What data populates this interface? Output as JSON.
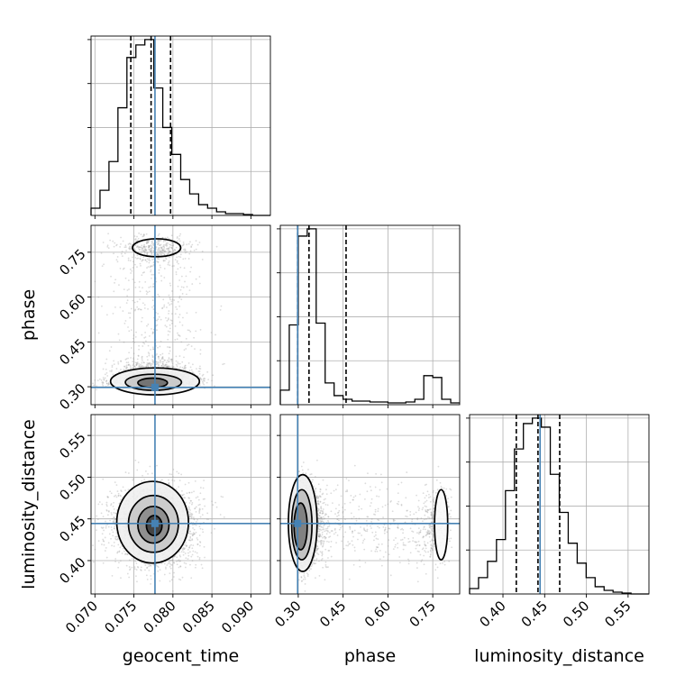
{
  "chart_data": {
    "type": "corner",
    "parameters": [
      {
        "name": "geocent_time",
        "axis_label": "geocent_time",
        "range": [
          0.0695,
          0.0925
        ],
        "ticks": [
          0.07,
          0.075,
          0.08,
          0.085,
          0.09
        ],
        "tick_labels": [
          "0.070",
          "0.075",
          "0.080",
          "0.085",
          "0.090"
        ],
        "truth": 0.0777,
        "quantiles": [
          0.0746,
          0.0772,
          0.0797
        ]
      },
      {
        "name": "phase",
        "axis_label": "phase",
        "range": [
          0.24,
          0.84
        ],
        "ticks": [
          0.3,
          0.45,
          0.6,
          0.75
        ],
        "tick_labels": [
          "0.30",
          "0.45",
          "0.60",
          "0.75"
        ],
        "truth": 0.298,
        "quantiles": [
          0.298,
          0.336,
          0.46
        ]
      },
      {
        "name": "luminosity_distance",
        "axis_label": "luminosity_distance",
        "range": [
          0.36,
          0.575
        ],
        "ticks": [
          0.4,
          0.45,
          0.5,
          0.55
        ],
        "tick_labels": [
          "0.40",
          "0.45",
          "0.50",
          "0.55"
        ],
        "truth": 0.4445,
        "quantiles": [
          0.416,
          0.442,
          0.468
        ]
      }
    ],
    "histograms": {
      "geocent_time": {
        "edges": [
          0.0695,
          0.07065,
          0.0718,
          0.07295,
          0.0741,
          0.07525,
          0.0764,
          0.07755,
          0.0787,
          0.07985,
          0.081,
          0.08215,
          0.0833,
          0.08445,
          0.0856,
          0.08675,
          0.0879,
          0.08905,
          0.0902,
          0.09135,
          0.0925
        ],
        "counts": [
          4,
          14,
          30,
          60,
          88,
          95,
          98,
          71,
          49,
          34,
          20,
          12,
          6,
          4,
          2,
          1,
          1,
          0.5,
          0,
          0
        ]
      },
      "phase": {
        "edges": [
          0.24,
          0.27,
          0.3,
          0.33,
          0.36,
          0.39,
          0.42,
          0.45,
          0.48,
          0.51,
          0.54,
          0.57,
          0.6,
          0.63,
          0.66,
          0.69,
          0.72,
          0.75,
          0.78,
          0.81,
          0.84
        ],
        "counts": [
          8,
          44,
          93,
          97,
          45,
          12,
          5,
          3,
          2,
          2,
          1.5,
          1.5,
          1,
          1,
          1.5,
          3,
          16,
          15,
          3,
          1
        ]
      },
      "luminosity_distance": {
        "edges": [
          0.36,
          0.37075,
          0.3815,
          0.39225,
          0.403,
          0.41375,
          0.4245,
          0.43525,
          0.446,
          0.45675,
          0.4675,
          0.47825,
          0.489,
          0.49975,
          0.5105,
          0.52125,
          0.532,
          0.54275,
          0.5535,
          0.56425,
          0.575
        ],
        "counts": [
          3,
          9,
          18,
          30,
          57,
          80,
          94,
          97,
          92,
          66,
          45,
          28,
          17,
          9,
          4,
          2,
          1,
          0.5,
          0,
          0
        ]
      }
    },
    "grid": true,
    "colors": {
      "truth": "#4682b4",
      "hist": "#000000",
      "contour": "#000000",
      "points": "#9a9a9a"
    }
  }
}
